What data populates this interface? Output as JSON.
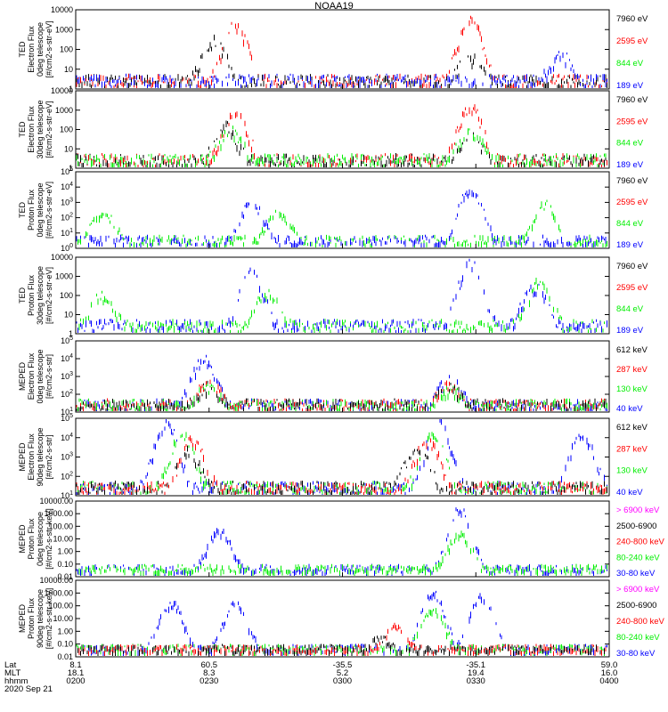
{
  "title": "NOAA19",
  "date": "2020 Sep 21",
  "colors": {
    "black": "#000000",
    "red": "#ff0000",
    "green": "#00ee00",
    "blue": "#0000ff",
    "magenta": "#ff00ff"
  },
  "x_axis": {
    "row_labels": [
      "Lat",
      "MLT",
      "hhmm"
    ],
    "ticks": [
      {
        "lat": "8.1",
        "mlt": "18.1",
        "hhmm": "0200"
      },
      {
        "lat": "60.5",
        "mlt": "8.3",
        "hhmm": "0230"
      },
      {
        "lat": "-35.5",
        "mlt": "5.2",
        "hhmm": "0300"
      },
      {
        "lat": "-35.1",
        "mlt": "19.4",
        "hhmm": "0330"
      },
      {
        "lat": "59.0",
        "mlt": "16.0",
        "hhmm": "0400"
      }
    ]
  },
  "chart_data": [
    {
      "type": "line",
      "ylabel": [
        "TED",
        "Electron Flux",
        "0deg telescope",
        "[#/cm2-s-str-eV]"
      ],
      "yscale": "log",
      "ylim": [
        1,
        10000
      ],
      "yticks": [
        "1",
        "10",
        "100",
        "1000",
        "10000"
      ],
      "legend": [
        {
          "label": "7960 eV",
          "color": "black"
        },
        {
          "label": "2595 eV",
          "color": "red"
        },
        {
          "label": "844 eV",
          "color": "green"
        },
        {
          "label": "189 eV",
          "color": "blue"
        }
      ],
      "series": [
        {
          "color": "red",
          "peaks": [
            [
              0.3,
              2000
            ],
            [
              0.74,
              4000
            ]
          ]
        },
        {
          "color": "black",
          "peaks": [
            [
              0.26,
              300
            ],
            [
              0.74,
              40
            ]
          ]
        },
        {
          "color": "blue",
          "peaks": [
            [
              0.91,
              50
            ]
          ]
        }
      ]
    },
    {
      "type": "line",
      "ylabel": [
        "TED",
        "Electron Flux",
        "30deg telescope",
        "[#/cm2-s-str-eV]"
      ],
      "yscale": "log",
      "ylim": [
        1,
        10000
      ],
      "yticks": [
        "1",
        "10",
        "100",
        "1000",
        "10000"
      ],
      "legend": [
        {
          "label": "7960 eV",
          "color": "black"
        },
        {
          "label": "2595 eV",
          "color": "red"
        },
        {
          "label": "844 eV",
          "color": "green"
        },
        {
          "label": "189 eV",
          "color": "blue"
        }
      ],
      "series": [
        {
          "color": "red",
          "peaks": [
            [
              0.3,
              700
            ],
            [
              0.74,
              1500
            ]
          ]
        },
        {
          "color": "black",
          "peaks": [
            [
              0.28,
              150
            ],
            [
              0.74,
              50
            ]
          ]
        },
        {
          "color": "green",
          "peaks": [
            [
              0.29,
              100
            ],
            [
              0.74,
              100
            ]
          ]
        }
      ]
    },
    {
      "type": "line",
      "ylabel": [
        "TED",
        "Proton Flux",
        "0deg telescope",
        "[#/cm2-s-str-eV]"
      ],
      "yscale": "log",
      "ylim_exp": [
        0,
        5
      ],
      "yticks": [
        "10^0",
        "10^1",
        "10^2",
        "10^3",
        "10^4",
        "10^5"
      ],
      "legend": [
        {
          "label": "7960 eV",
          "color": "black"
        },
        {
          "label": "2595 eV",
          "color": "red"
        },
        {
          "label": "844 eV",
          "color": "green"
        },
        {
          "label": "189 eV",
          "color": "blue"
        }
      ],
      "series": [
        {
          "color": "green",
          "peaks": [
            [
              0.05,
              300
            ],
            [
              0.38,
              200
            ],
            [
              0.88,
              800
            ]
          ]
        },
        {
          "color": "blue",
          "peaks": [
            [
              0.33,
              1000
            ],
            [
              0.74,
              8000
            ]
          ]
        }
      ]
    },
    {
      "type": "line",
      "ylabel": [
        "TED",
        "Proton Flux",
        "30deg telescope",
        "[#/cm2-s-str-eV]"
      ],
      "yscale": "log",
      "ylim": [
        1,
        10000
      ],
      "yticks": [
        "1",
        "10",
        "100",
        "1000",
        "10000"
      ],
      "legend": [
        {
          "label": "7960 eV",
          "color": "black"
        },
        {
          "label": "2595 eV",
          "color": "red"
        },
        {
          "label": "844 eV",
          "color": "green"
        },
        {
          "label": "189 eV",
          "color": "blue"
        }
      ],
      "series": [
        {
          "color": "green",
          "peaks": [
            [
              0.05,
              100
            ],
            [
              0.36,
              150
            ],
            [
              0.87,
              600
            ]
          ]
        },
        {
          "color": "blue",
          "peaks": [
            [
              0.33,
              2000
            ],
            [
              0.74,
              5000
            ],
            [
              0.86,
              300
            ]
          ]
        }
      ]
    },
    {
      "type": "line",
      "ylabel": [
        "MEPED",
        "Electron Flux",
        "0deg telescope",
        "[#/cm2-s-str]"
      ],
      "yscale": "log",
      "ylim_exp": [
        1,
        5
      ],
      "yticks": [
        "10^1",
        "10^2",
        "10^3",
        "10^4",
        "10^5"
      ],
      "legend": [
        {
          "label": "612 keV",
          "color": "black"
        },
        {
          "label": "287 keV",
          "color": "red"
        },
        {
          "label": "130 keV",
          "color": "green"
        },
        {
          "label": "40 keV",
          "color": "blue"
        }
      ],
      "series": [
        {
          "color": "blue",
          "peaks": [
            [
              0.24,
              10000
            ],
            [
              0.7,
              800
            ]
          ]
        },
        {
          "color": "red",
          "peaks": [
            [
              0.25,
              500
            ],
            [
              0.7,
              400
            ]
          ]
        },
        {
          "color": "green",
          "peaks": [
            [
              0.25,
              300
            ],
            [
              0.7,
              200
            ]
          ]
        },
        {
          "color": "black",
          "peaks": [
            [
              0.25,
              300
            ],
            [
              0.7,
              300
            ]
          ]
        }
      ]
    },
    {
      "type": "line",
      "ylabel": [
        "MEPED",
        "Electron Flux",
        "90deg telescope",
        "[#/cm2-s-str]"
      ],
      "yscale": "log",
      "ylim_exp": [
        1,
        5
      ],
      "yticks": [
        "10^1",
        "10^2",
        "10^3",
        "10^4",
        "10^5"
      ],
      "legend": [
        {
          "label": "612 keV",
          "color": "black"
        },
        {
          "label": "287 keV",
          "color": "red"
        },
        {
          "label": "130 keV",
          "color": "green"
        },
        {
          "label": "40 keV",
          "color": "blue"
        }
      ],
      "series": [
        {
          "color": "blue",
          "peaks": [
            [
              0.17,
              60000
            ],
            [
              0.68,
              80000
            ],
            [
              0.95,
              20000
            ]
          ]
        },
        {
          "color": "green",
          "peaks": [
            [
              0.2,
              15000
            ],
            [
              0.67,
              20000
            ]
          ]
        },
        {
          "color": "red",
          "peaks": [
            [
              0.22,
              8000
            ],
            [
              0.66,
              8000
            ]
          ]
        },
        {
          "color": "black",
          "peaks": [
            [
              0.21,
              2000
            ],
            [
              0.64,
              3000
            ]
          ]
        }
      ]
    },
    {
      "type": "line",
      "ylabel": [
        "MEPED",
        "Proton Flux",
        "0deg telescope",
        "[#/cm2-s-str-keV]"
      ],
      "yscale": "log",
      "ylim": [
        0.01,
        10000
      ],
      "yticks": [
        "0.01",
        "0.10",
        "1.00",
        "10.00",
        "100.00",
        "1000.00",
        "10000.00"
      ],
      "legend": [
        {
          "label": "> 6900 keV",
          "color": "magenta"
        },
        {
          "label": "2500-6900",
          "color": "black"
        },
        {
          "label": "240-800 keV",
          "color": "red"
        },
        {
          "label": "80-240 keV",
          "color": "green"
        },
        {
          "label": "30-80 keV",
          "color": "blue"
        }
      ],
      "series": [
        {
          "color": "blue",
          "peaks": [
            [
              0.27,
              50
            ],
            [
              0.72,
              3000
            ]
          ]
        },
        {
          "color": "green",
          "peaks": [
            [
              0.72,
              30
            ]
          ]
        }
      ]
    },
    {
      "type": "line",
      "ylabel": [
        "MEPED",
        "Proton Flux",
        "90deg telescope",
        "[#/cm2-s-str-keV]"
      ],
      "yscale": "log",
      "ylim": [
        0.01,
        10000
      ],
      "yticks": [
        "0.01",
        "0.10",
        "1.00",
        "10.00",
        "100.00",
        "1000.00",
        "10000.00"
      ],
      "legend": [
        {
          "label": "> 6900 keV",
          "color": "magenta"
        },
        {
          "label": "2500-6900",
          "color": "black"
        },
        {
          "label": "240-800 keV",
          "color": "red"
        },
        {
          "label": "80-240 keV",
          "color": "green"
        },
        {
          "label": "30-80 keV",
          "color": "blue"
        }
      ],
      "series": [
        {
          "color": "blue",
          "peaks": [
            [
              0.18,
              200
            ],
            [
              0.3,
              150
            ],
            [
              0.67,
              1000
            ],
            [
              0.76,
              800
            ]
          ]
        },
        {
          "color": "green",
          "peaks": [
            [
              0.67,
              50
            ]
          ]
        },
        {
          "color": "red",
          "peaks": [
            [
              0.6,
              3
            ]
          ]
        },
        {
          "color": "black",
          "peaks": [
            [
              0.57,
              0.3
            ]
          ]
        }
      ]
    }
  ]
}
